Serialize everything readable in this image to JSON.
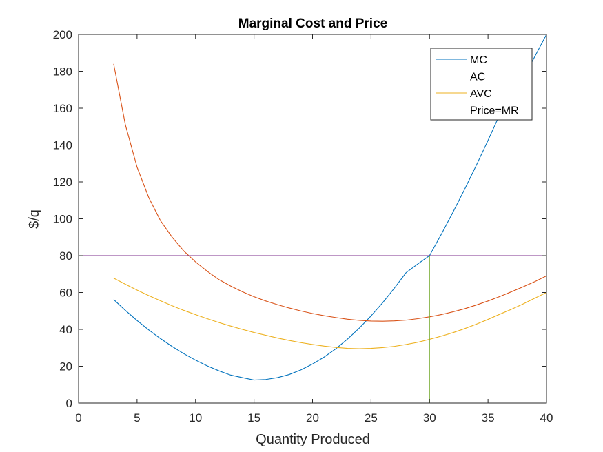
{
  "chart_data": {
    "type": "line",
    "title": "Marginal Cost and Price",
    "xlabel": "Quantity Produced",
    "ylabel": "$/q",
    "xlim": [
      0,
      40
    ],
    "ylim": [
      0,
      200
    ],
    "xticks": [
      0,
      5,
      10,
      15,
      20,
      25,
      30,
      35,
      40
    ],
    "yticks": [
      0,
      20,
      40,
      60,
      80,
      100,
      120,
      140,
      160,
      180,
      200
    ],
    "grid": false,
    "legend_position": "top-right",
    "series": [
      {
        "name": "MC",
        "color": "#0072BD",
        "x": [
          3,
          4,
          5,
          6,
          7,
          8,
          9,
          10,
          11,
          12,
          13,
          14,
          15,
          16,
          17,
          18,
          19,
          20,
          21,
          22,
          23,
          24,
          25,
          26,
          27,
          28,
          29,
          30,
          31,
          32,
          33,
          34,
          35,
          36,
          37,
          38,
          39,
          40
        ],
        "y": [
          56.2,
          50.3,
          44.8,
          39.7,
          35.0,
          30.7,
          26.8,
          23.3,
          20.2,
          17.5,
          15.2,
          13.8,
          12.5,
          12.8,
          13.8,
          15.5,
          18.0,
          21.2,
          25.0,
          29.5,
          34.8,
          40.7,
          47.3,
          54.5,
          62.4,
          70.8,
          75.5,
          80.0,
          91.5,
          103.5,
          116.0,
          129.0,
          142.5,
          156.5,
          165.0,
          176.0,
          188.0,
          200.0
        ]
      },
      {
        "name": "AC",
        "color": "#D95319",
        "x": [
          3,
          4,
          5,
          6,
          7,
          8,
          9,
          10,
          11,
          12,
          13,
          14,
          15,
          16,
          17,
          18,
          19,
          20,
          21,
          22,
          23,
          24,
          25,
          26,
          27,
          28,
          29,
          30,
          31,
          32,
          33,
          34,
          35,
          36,
          37,
          38,
          39,
          40
        ],
        "y": [
          184.0,
          151.0,
          128.0,
          111.5,
          99.0,
          90.0,
          82.5,
          76.6,
          71.5,
          67.0,
          63.5,
          60.4,
          57.7,
          55.4,
          53.4,
          51.6,
          50.0,
          48.6,
          47.4,
          46.4,
          45.5,
          44.9,
          44.5,
          44.4,
          44.6,
          45.0,
          45.8,
          46.8,
          48.0,
          49.5,
          51.2,
          53.2,
          55.4,
          57.8,
          60.4,
          63.1,
          65.9,
          69.0
        ]
      },
      {
        "name": "AVC",
        "color": "#EDB120",
        "x": [
          3,
          4,
          5,
          6,
          7,
          8,
          9,
          10,
          11,
          12,
          13,
          14,
          15,
          16,
          17,
          18,
          19,
          20,
          21,
          22,
          23,
          24,
          25,
          26,
          27,
          28,
          29,
          30,
          31,
          32,
          33,
          34,
          35,
          36,
          37,
          38,
          39,
          40
        ],
        "y": [
          67.8,
          64.5,
          61.3,
          58.3,
          55.5,
          52.8,
          50.3,
          48.0,
          45.8,
          43.7,
          41.8,
          40.0,
          38.3,
          36.8,
          35.3,
          34.0,
          32.8,
          31.8,
          30.9,
          30.2,
          29.7,
          29.5,
          29.7,
          30.1,
          30.8,
          31.8,
          33.0,
          34.6,
          36.3,
          38.2,
          40.4,
          42.8,
          45.4,
          48.2,
          50.9,
          53.8,
          56.9,
          60.0
        ]
      },
      {
        "name": "Price=MR",
        "color": "#7E2F8E",
        "x": [
          0,
          40
        ],
        "y": [
          80,
          80
        ]
      }
    ],
    "vertical_line": {
      "x": 30,
      "y_from": 0,
      "y_to": 80,
      "color": "#77AC30"
    }
  }
}
